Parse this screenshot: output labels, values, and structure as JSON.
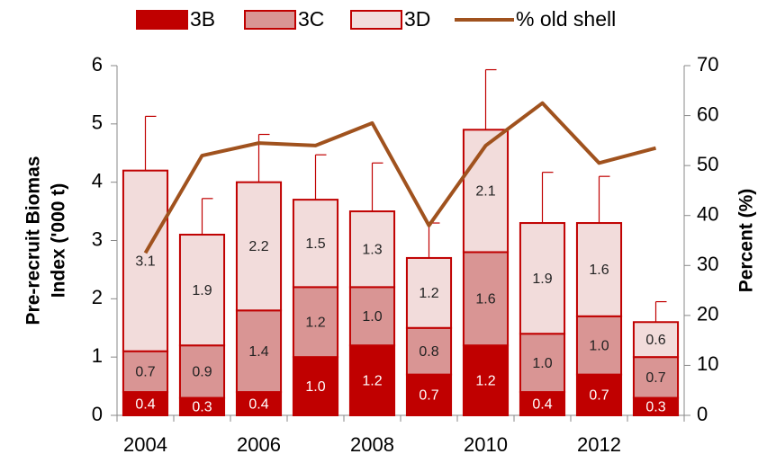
{
  "chart_data": {
    "type": "stacked-bar-line",
    "categories": [
      "2004",
      null,
      "2006",
      null,
      "2008",
      null,
      "2010",
      null,
      "2012",
      null
    ],
    "series": [
      {
        "name": "3B",
        "color": "#c00000",
        "values": [
          0.4,
          0.3,
          0.4,
          1.0,
          1.2,
          0.7,
          1.2,
          0.4,
          0.7,
          0.3
        ],
        "value_labels": [
          "0.4",
          "0.3",
          "0.4",
          "1.0",
          "1.2",
          "0.7",
          "1.2",
          "0.4",
          "0.7",
          "0.3"
        ]
      },
      {
        "name": "3C",
        "color": "#d99594",
        "values": [
          0.7,
          0.9,
          1.4,
          1.2,
          1.0,
          0.8,
          1.6,
          1.0,
          1.0,
          0.7
        ],
        "value_labels": [
          "0.7",
          "0.9",
          "1.4",
          "1.2",
          "1.0",
          "0.8",
          "1.6",
          "1.0",
          "1.0",
          "0.7"
        ]
      },
      {
        "name": "3D",
        "color": "#f2dcdb",
        "values": [
          3.1,
          1.9,
          2.2,
          1.5,
          1.3,
          1.2,
          2.1,
          1.9,
          1.6,
          0.6
        ],
        "value_labels": [
          "3.1",
          "1.9",
          "2.2",
          "1.5",
          "1.3",
          "1.2",
          "2.1",
          "1.9",
          "1.6",
          "0.6"
        ]
      },
      {
        "name": "% old shell",
        "color": "#a0521e",
        "axis": "y2",
        "values": [
          32.5,
          52,
          54.5,
          54,
          58.5,
          38,
          54,
          62.5,
          50.5,
          53.5
        ]
      }
    ],
    "errors": [
      0.93,
      0.62,
      0.82,
      0.77,
      0.83,
      0.6,
      1.03,
      0.87,
      0.8,
      0.35
    ],
    "ylabel": [
      "Pre-recruit Biomas",
      "Index ('000 t)"
    ],
    "y2label": "Percent (%)",
    "ylim": [
      0,
      6
    ],
    "yticks": [
      0,
      1,
      2,
      3,
      4,
      5,
      6
    ],
    "y2lim": [
      0,
      70
    ],
    "y2ticks": [
      0,
      10,
      20,
      30,
      40,
      50,
      60,
      70
    ],
    "border_color": "#c00000"
  }
}
